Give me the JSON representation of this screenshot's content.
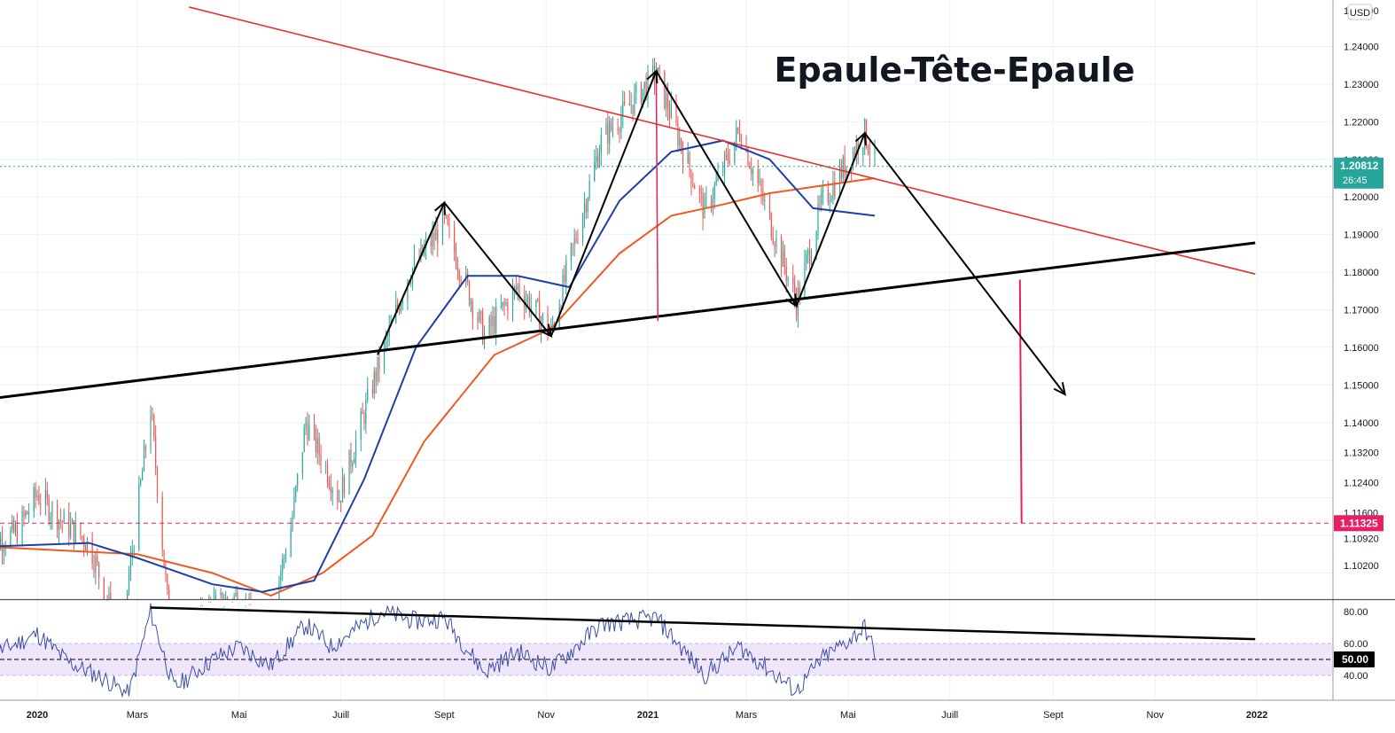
{
  "header": {
    "currency_badge": "USD"
  },
  "colors": {
    "candle_up": "#26a69a",
    "candle_down": "#ef5350",
    "ma_fast": "#1e3fa8",
    "ma_slow": "#f2581f",
    "resistance_line": "#e8312a",
    "pattern_lines": "#000000",
    "target_line": "#e91e63",
    "rsi_line": "#3a4fa3",
    "rsi_band": "#e9ddfa",
    "price_tag": "#26a69a",
    "target_tag": "#e91e63"
  },
  "annotations": {
    "pattern_title": "Epaule-Tête-Epaule"
  },
  "chart_data": [
    {
      "type": "candlestick",
      "title": "",
      "instrument_quote": "USD",
      "timeframe": "daily",
      "ylim": [
        1.0935,
        1.2505
      ],
      "y_ticks": [
        "1.10200",
        "1.10920",
        "1.11600",
        "1.12400",
        "1.13200",
        "1.14000",
        "1.15000",
        "1.16000",
        "1.17000",
        "1.18000",
        "1.19000",
        "1.20000",
        "1.21000",
        "1.22000",
        "1.23000",
        "1.24000"
      ],
      "top_partial_tick": "1.25000",
      "x_ticks": [
        "2020",
        "Mars",
        "Mai",
        "Juill",
        "Sept",
        "Nov",
        "2021",
        "Mars",
        "Mai",
        "Juill",
        "Sept",
        "Nov",
        "2022"
      ],
      "price_path": [
        [
          "2019-12-02",
          1.107
        ],
        [
          "2019-12-20",
          1.111
        ],
        [
          "2020-01-01",
          1.121
        ],
        [
          "2020-01-15",
          1.114
        ],
        [
          "2020-02-01",
          1.108
        ],
        [
          "2020-02-20",
          1.082
        ],
        [
          "2020-03-09",
          1.144
        ],
        [
          "2020-03-23",
          1.072
        ],
        [
          "2020-04-10",
          1.09
        ],
        [
          "2020-05-01",
          1.094
        ],
        [
          "2020-05-15",
          1.08
        ],
        [
          "2020-06-01",
          1.112
        ],
        [
          "2020-06-10",
          1.14
        ],
        [
          "2020-06-30",
          1.12
        ],
        [
          "2020-07-20",
          1.15
        ],
        [
          "2020-08-10",
          1.179
        ],
        [
          "2020-09-01",
          1.193
        ],
        [
          "2020-09-25",
          1.163
        ],
        [
          "2020-10-15",
          1.176
        ],
        [
          "2020-11-04",
          1.164
        ],
        [
          "2020-12-04",
          1.215
        ],
        [
          "2021-01-06",
          1.233
        ],
        [
          "2021-02-04",
          1.196
        ],
        [
          "2021-02-25",
          1.218
        ],
        [
          "2021-03-31",
          1.172
        ],
        [
          "2021-04-15",
          1.198
        ],
        [
          "2021-05-11",
          1.217
        ],
        [
          "2021-05-17",
          1.209
        ]
      ],
      "current_price": {
        "value": 1.20812,
        "label": "1.20812",
        "countdown": "26:45"
      },
      "target": {
        "value": 1.11325,
        "label": "1.11325"
      },
      "moving_averages": {
        "fast": [
          [
            "2019-12-02",
            1.107
          ],
          [
            "2020-02-01",
            1.108
          ],
          [
            "2020-03-01",
            1.104
          ],
          [
            "2020-04-15",
            1.097
          ],
          [
            "2020-05-15",
            1.095
          ],
          [
            "2020-06-15",
            1.098
          ],
          [
            "2020-07-15",
            1.125
          ],
          [
            "2020-08-15",
            1.16
          ],
          [
            "2020-09-15",
            1.179
          ],
          [
            "2020-10-15",
            1.179
          ],
          [
            "2020-11-15",
            1.176
          ],
          [
            "2020-12-15",
            1.199
          ],
          [
            "2021-01-15",
            1.212
          ],
          [
            "2021-02-15",
            1.215
          ],
          [
            "2021-03-15",
            1.21
          ],
          [
            "2021-04-10",
            1.197
          ],
          [
            "2021-05-17",
            1.195
          ]
        ],
        "slow": [
          [
            "2019-12-02",
            1.107
          ],
          [
            "2020-03-01",
            1.105
          ],
          [
            "2020-04-15",
            1.1
          ],
          [
            "2020-05-20",
            1.094
          ],
          [
            "2020-06-20",
            1.1
          ],
          [
            "2020-07-20",
            1.11
          ],
          [
            "2020-08-20",
            1.135
          ],
          [
            "2020-10-01",
            1.158
          ],
          [
            "2020-11-04",
            1.165
          ],
          [
            "2020-12-15",
            1.185
          ],
          [
            "2021-01-15",
            1.195
          ],
          [
            "2021-02-15",
            1.198
          ],
          [
            "2021-03-15",
            1.201
          ],
          [
            "2021-04-15",
            1.203
          ],
          [
            "2021-05-17",
            1.205
          ]
        ]
      },
      "pattern": {
        "name": "Epaule-Tête-Epaule",
        "zigzag": [
          [
            "2020-07-23",
            1.158
          ],
          [
            "2020-09-01",
            1.1985
          ],
          [
            "2020-11-04",
            1.163
          ],
          [
            "2021-01-06",
            1.2335
          ],
          [
            "2021-03-31",
            1.171
          ],
          [
            "2021-05-11",
            1.217
          ],
          [
            "2021-09-08",
            1.1475
          ]
        ],
        "neckline": [
          [
            "2019-12-01",
            1.1462
          ],
          [
            "2021-12-31",
            1.1878
          ]
        ],
        "resistance": [
          [
            "2020-04-01",
            1.2505
          ],
          [
            "2021-12-31",
            1.1795
          ]
        ],
        "target_projection": [
          [
            "2021-08-12",
            1.178
          ],
          [
            "2021-08-13",
            1.11325
          ]
        ],
        "head_height_marker": [
          [
            "2021-01-06",
            1.2335
          ],
          [
            "2021-01-07",
            1.167
          ]
        ]
      }
    },
    {
      "type": "line",
      "title": "",
      "ylim": [
        26,
        88
      ],
      "y_ticks": [
        "40.00",
        "60.00",
        "80.00"
      ],
      "midline": {
        "value": 50,
        "label": "50.00"
      },
      "band": [
        40,
        60
      ],
      "rsi_path": [
        [
          "2019-12-02",
          52
        ],
        [
          "2019-12-20",
          60
        ],
        [
          "2020-01-01",
          66
        ],
        [
          "2020-01-20",
          48
        ],
        [
          "2020-02-10",
          38
        ],
        [
          "2020-02-25",
          28
        ],
        [
          "2020-03-09",
          80
        ],
        [
          "2020-03-23",
          32
        ],
        [
          "2020-04-15",
          50
        ],
        [
          "2020-05-01",
          58
        ],
        [
          "2020-05-20",
          46
        ],
        [
          "2020-06-10",
          72
        ],
        [
          "2020-06-25",
          58
        ],
        [
          "2020-07-25",
          80
        ],
        [
          "2020-08-15",
          74
        ],
        [
          "2020-09-01",
          76
        ],
        [
          "2020-09-25",
          42
        ],
        [
          "2020-10-15",
          55
        ],
        [
          "2020-11-04",
          44
        ],
        [
          "2020-12-04",
          72
        ],
        [
          "2021-01-06",
          76
        ],
        [
          "2021-02-04",
          40
        ],
        [
          "2021-02-25",
          58
        ],
        [
          "2021-03-31",
          30
        ],
        [
          "2021-04-15",
          50
        ],
        [
          "2021-05-04",
          64
        ],
        [
          "2021-05-11",
          70
        ],
        [
          "2021-05-17",
          54
        ]
      ],
      "trendline": [
        [
          "2020-03-09",
          82.5
        ],
        [
          "2021-12-31",
          62.7
        ]
      ]
    }
  ]
}
